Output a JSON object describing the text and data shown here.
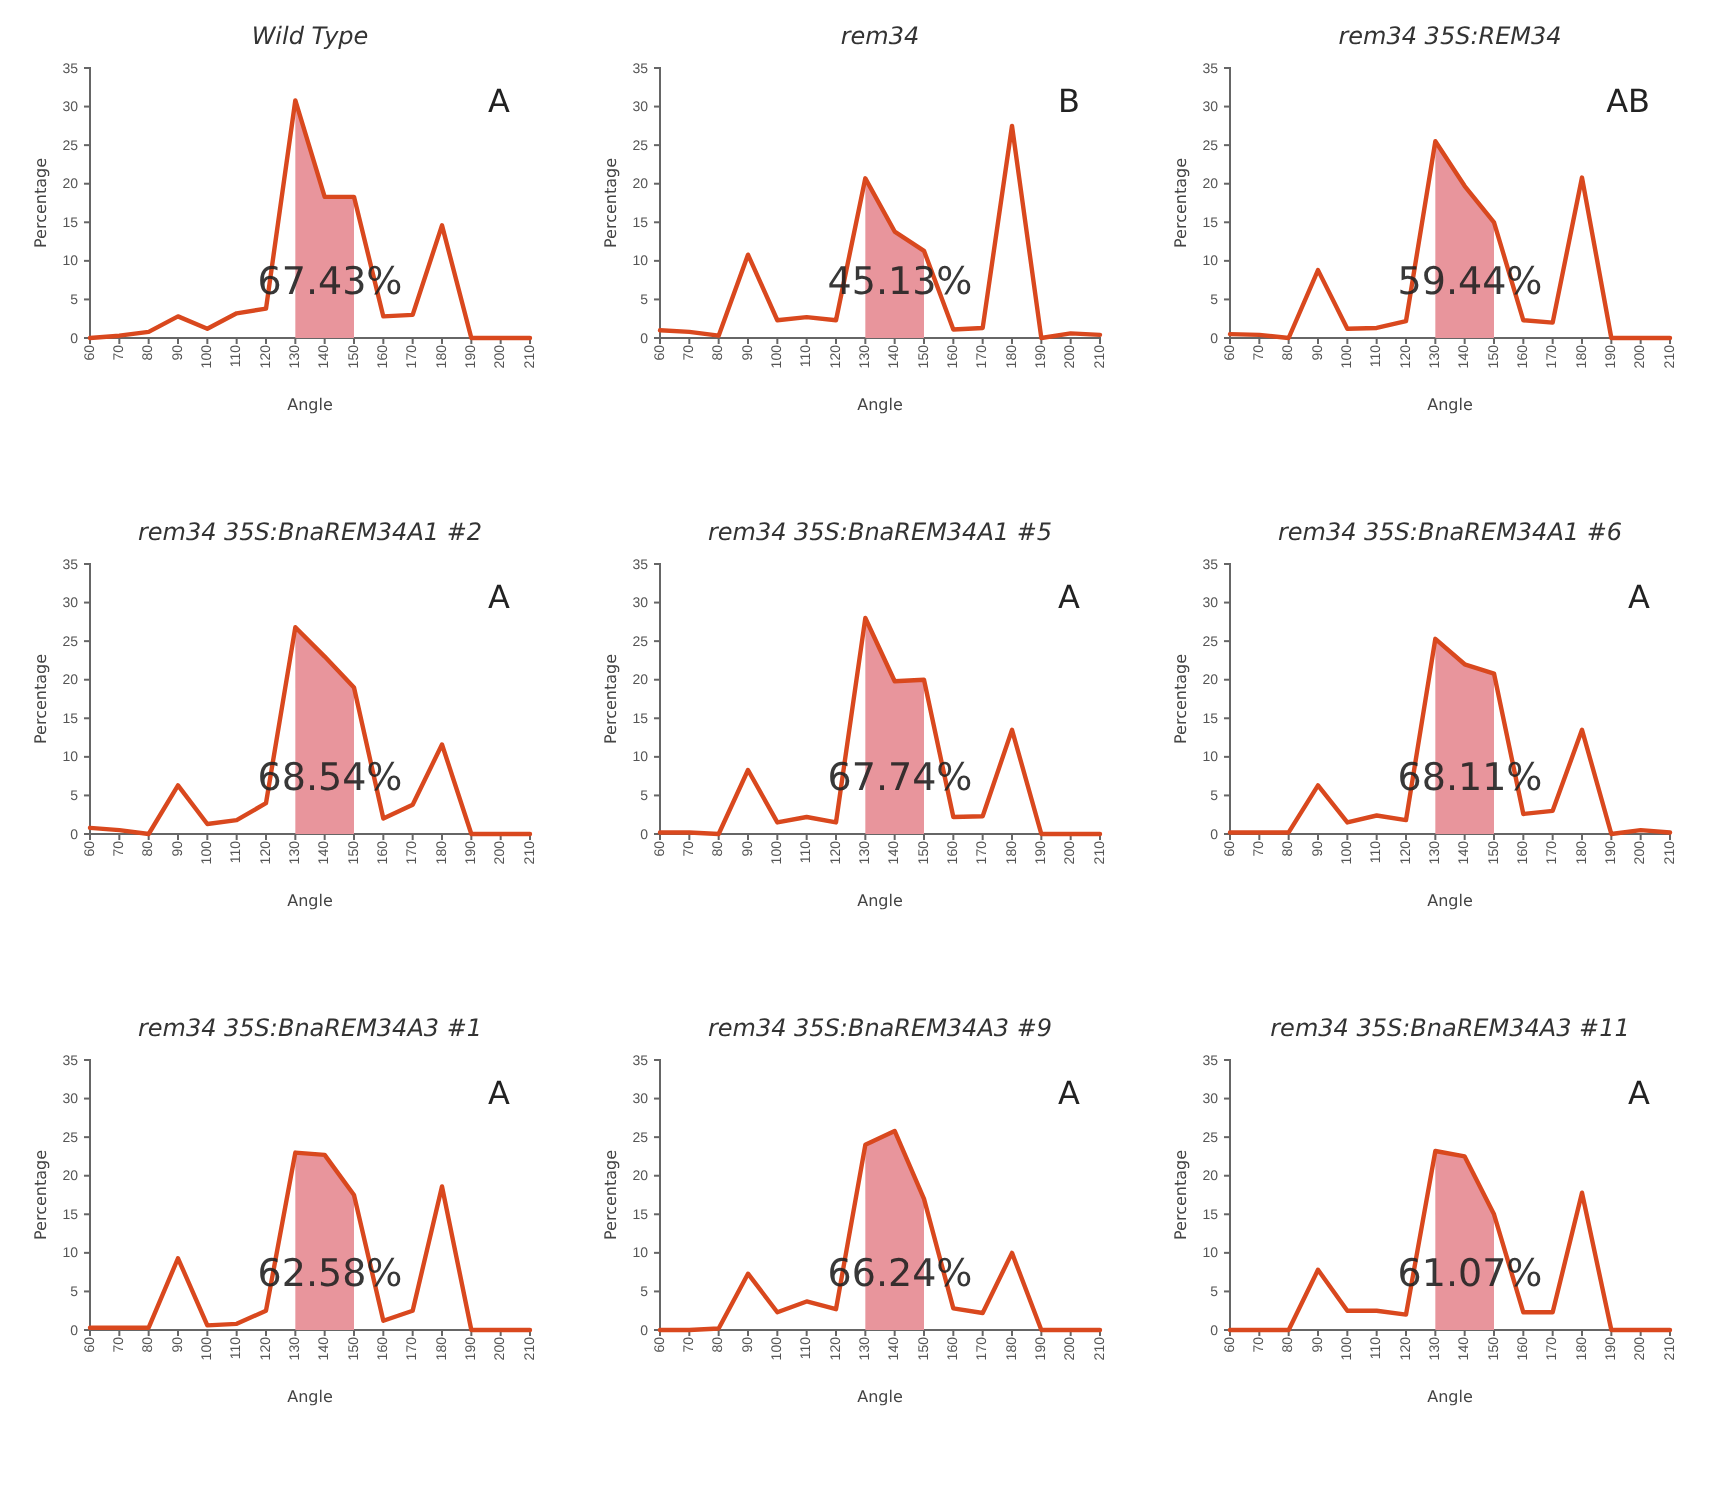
{
  "chart_data": [
    {
      "type": "line",
      "title": "Wild Type",
      "xlabel": "Angle",
      "ylabel": "Percentage",
      "xlim": [
        60,
        210
      ],
      "xticks": [
        60,
        70,
        80,
        90,
        100,
        110,
        120,
        130,
        140,
        150,
        160,
        170,
        180,
        190,
        200,
        210
      ],
      "ylim": [
        0,
        35
      ],
      "yticks": [
        0,
        5,
        10,
        15,
        20,
        25,
        30,
        35
      ],
      "x": [
        60,
        70,
        80,
        90,
        100,
        110,
        120,
        130,
        140,
        150,
        160,
        170,
        180,
        190,
        200,
        210
      ],
      "series": [
        {
          "type": "area",
          "color": "#e8959c",
          "x": [
            130,
            140,
            150
          ],
          "values": [
            30.8,
            18.3,
            18.3
          ]
        },
        {
          "color": "#d9481e",
          "values": [
            0,
            0.3,
            0.8,
            2.8,
            1.2,
            3.2,
            3.8,
            30.8,
            18.3,
            18.3,
            2.8,
            3,
            14.6,
            0,
            0,
            0
          ]
        }
      ],
      "annotations": [
        "67.43%",
        "A"
      ]
    },
    {
      "type": "line",
      "title": "rem34",
      "xlabel": "Angle",
      "ylabel": "Percentage",
      "xlim": [
        60,
        210
      ],
      "xticks": [
        60,
        70,
        80,
        90,
        100,
        110,
        120,
        130,
        140,
        150,
        160,
        170,
        180,
        190,
        200,
        210
      ],
      "ylim": [
        0,
        35
      ],
      "yticks": [
        0,
        5,
        10,
        15,
        20,
        25,
        30,
        35
      ],
      "x": [
        60,
        70,
        80,
        90,
        100,
        110,
        120,
        130,
        140,
        150,
        160,
        170,
        180,
        190,
        200,
        210
      ],
      "series": [
        {
          "type": "area",
          "color": "#e8959c",
          "x": [
            130,
            140,
            150
          ],
          "values": [
            20.7,
            13.8,
            11.3
          ]
        },
        {
          "color": "#d9481e",
          "values": [
            1,
            0.8,
            0.3,
            10.8,
            2.3,
            2.7,
            2.3,
            20.7,
            13.8,
            11.3,
            1.1,
            1.3,
            27.5,
            0,
            0.6,
            0.4
          ]
        }
      ],
      "annotations": [
        "45.13%",
        "B"
      ]
    },
    {
      "type": "line",
      "title": "rem34 35S:REM34",
      "xlabel": "Angle",
      "ylabel": "Percentage",
      "xlim": [
        60,
        210
      ],
      "xticks": [
        60,
        70,
        80,
        90,
        100,
        110,
        120,
        130,
        140,
        150,
        160,
        170,
        180,
        190,
        200,
        210
      ],
      "ylim": [
        0,
        35
      ],
      "yticks": [
        0,
        5,
        10,
        15,
        20,
        25,
        30,
        35
      ],
      "x": [
        60,
        70,
        80,
        90,
        100,
        110,
        120,
        130,
        140,
        150,
        160,
        170,
        180,
        190,
        200,
        210
      ],
      "series": [
        {
          "type": "area",
          "color": "#e8959c",
          "x": [
            130,
            140,
            150
          ],
          "values": [
            25.5,
            19.7,
            15
          ]
        },
        {
          "color": "#d9481e",
          "values": [
            0.5,
            0.4,
            0,
            8.8,
            1.2,
            1.3,
            2.2,
            25.5,
            19.7,
            15,
            2.3,
            2,
            20.8,
            0,
            0,
            0
          ]
        }
      ],
      "annotations": [
        "59.44%",
        "AB"
      ]
    },
    {
      "type": "line",
      "title": "rem34 35S:BnaREM34A1 #2",
      "xlabel": "Angle",
      "ylabel": "Percentage",
      "xlim": [
        60,
        210
      ],
      "xticks": [
        60,
        70,
        80,
        90,
        100,
        110,
        120,
        130,
        140,
        150,
        160,
        170,
        180,
        190,
        200,
        210
      ],
      "ylim": [
        0,
        35
      ],
      "yticks": [
        0,
        5,
        10,
        15,
        20,
        25,
        30,
        35
      ],
      "x": [
        60,
        70,
        80,
        90,
        100,
        110,
        120,
        130,
        140,
        150,
        160,
        170,
        180,
        190,
        200,
        210
      ],
      "series": [
        {
          "type": "area",
          "color": "#e8959c",
          "x": [
            130,
            140,
            150
          ],
          "values": [
            26.8,
            23,
            19
          ]
        },
        {
          "color": "#d9481e",
          "values": [
            0.8,
            0.5,
            0,
            6.3,
            1.3,
            1.8,
            4,
            26.8,
            23,
            19,
            2,
            3.8,
            11.6,
            0,
            0,
            0
          ]
        }
      ],
      "annotations": [
        "68.54%",
        "A"
      ]
    },
    {
      "type": "line",
      "title": "rem34 35S:BnaREM34A1 #5",
      "xlabel": "Angle",
      "ylabel": "Percentage",
      "xlim": [
        60,
        210
      ],
      "xticks": [
        60,
        70,
        80,
        90,
        100,
        110,
        120,
        130,
        140,
        150,
        160,
        170,
        180,
        190,
        200,
        210
      ],
      "ylim": [
        0,
        35
      ],
      "yticks": [
        0,
        5,
        10,
        15,
        20,
        25,
        30,
        35
      ],
      "x": [
        60,
        70,
        80,
        90,
        100,
        110,
        120,
        130,
        140,
        150,
        160,
        170,
        180,
        190,
        200,
        210
      ],
      "series": [
        {
          "type": "area",
          "color": "#e8959c",
          "x": [
            130,
            140,
            150
          ],
          "values": [
            28,
            19.8,
            20
          ]
        },
        {
          "color": "#d9481e",
          "values": [
            0.2,
            0.2,
            0,
            8.3,
            1.5,
            2.2,
            1.5,
            28,
            19.8,
            20,
            2.2,
            2.3,
            13.5,
            0,
            0,
            0
          ]
        }
      ],
      "annotations": [
        "67.74%",
        "A"
      ]
    },
    {
      "type": "line",
      "title": "rem34 35S:BnaREM34A1 #6",
      "xlabel": "Angle",
      "ylabel": "Percentage",
      "xlim": [
        60,
        210
      ],
      "xticks": [
        60,
        70,
        80,
        90,
        100,
        110,
        120,
        130,
        140,
        150,
        160,
        170,
        180,
        190,
        200,
        210
      ],
      "ylim": [
        0,
        35
      ],
      "yticks": [
        0,
        5,
        10,
        15,
        20,
        25,
        30,
        35
      ],
      "x": [
        60,
        70,
        80,
        90,
        100,
        110,
        120,
        130,
        140,
        150,
        160,
        170,
        180,
        190,
        200,
        210
      ],
      "series": [
        {
          "type": "area",
          "color": "#e8959c",
          "x": [
            130,
            140,
            150
          ],
          "values": [
            25.3,
            22,
            20.8
          ]
        },
        {
          "color": "#d9481e",
          "values": [
            0.2,
            0.2,
            0.2,
            6.3,
            1.5,
            2.4,
            1.8,
            25.3,
            22,
            20.8,
            2.6,
            3,
            13.5,
            0,
            0.5,
            0.2
          ]
        }
      ],
      "annotations": [
        "68.11%",
        "A"
      ]
    },
    {
      "type": "line",
      "title": "rem34 35S:BnaREM34A3 #1",
      "xlabel": "Angle",
      "ylabel": "Percentage",
      "xlim": [
        60,
        210
      ],
      "xticks": [
        60,
        70,
        80,
        90,
        100,
        110,
        120,
        130,
        140,
        150,
        160,
        170,
        180,
        190,
        200,
        210
      ],
      "ylim": [
        0,
        35
      ],
      "yticks": [
        0,
        5,
        10,
        15,
        20,
        25,
        30,
        35
      ],
      "x": [
        60,
        70,
        80,
        90,
        100,
        110,
        120,
        130,
        140,
        150,
        160,
        170,
        180,
        190,
        200,
        210
      ],
      "series": [
        {
          "type": "area",
          "color": "#e8959c",
          "x": [
            130,
            140,
            150
          ],
          "values": [
            23,
            22.7,
            17.5
          ]
        },
        {
          "color": "#d9481e",
          "values": [
            0.3,
            0.3,
            0.3,
            9.3,
            0.6,
            0.8,
            2.5,
            23,
            22.7,
            17.5,
            1.2,
            2.5,
            18.6,
            0,
            0,
            0
          ]
        }
      ],
      "annotations": [
        "62.58%",
        "A"
      ]
    },
    {
      "type": "line",
      "title": "rem34 35S:BnaREM34A3 #9",
      "xlabel": "Angle",
      "ylabel": "Percentage",
      "xlim": [
        60,
        210
      ],
      "xticks": [
        60,
        70,
        80,
        90,
        100,
        110,
        120,
        130,
        140,
        150,
        160,
        170,
        180,
        190,
        200,
        210
      ],
      "ylim": [
        0,
        35
      ],
      "yticks": [
        0,
        5,
        10,
        15,
        20,
        25,
        30,
        35
      ],
      "x": [
        60,
        70,
        80,
        90,
        100,
        110,
        120,
        130,
        140,
        150,
        160,
        170,
        180,
        190,
        200,
        210
      ],
      "series": [
        {
          "type": "area",
          "color": "#e8959c",
          "x": [
            130,
            140,
            150
          ],
          "values": [
            24,
            25.8,
            17
          ]
        },
        {
          "color": "#d9481e",
          "values": [
            0,
            0,
            0.2,
            7.3,
            2.3,
            3.7,
            2.7,
            24,
            25.8,
            17,
            2.8,
            2.2,
            10,
            0,
            0,
            0
          ]
        }
      ],
      "annotations": [
        "66.24%",
        "A"
      ]
    },
    {
      "type": "line",
      "title": "rem34 35S:BnaREM34A3 #11",
      "xlabel": "Angle",
      "ylabel": "Percentage",
      "xlim": [
        60,
        210
      ],
      "xticks": [
        60,
        70,
        80,
        90,
        100,
        110,
        120,
        130,
        140,
        150,
        160,
        170,
        180,
        190,
        200,
        210
      ],
      "ylim": [
        0,
        35
      ],
      "yticks": [
        0,
        5,
        10,
        15,
        20,
        25,
        30,
        35
      ],
      "x": [
        60,
        70,
        80,
        90,
        100,
        110,
        120,
        130,
        140,
        150,
        160,
        170,
        180,
        190,
        200,
        210
      ],
      "series": [
        {
          "type": "area",
          "color": "#e8959c",
          "x": [
            130,
            140,
            150
          ],
          "values": [
            23.2,
            22.5,
            15
          ]
        },
        {
          "color": "#d9481e",
          "values": [
            0,
            0,
            0,
            7.8,
            2.5,
            2.5,
            2,
            23.2,
            22.5,
            15,
            2.3,
            2.3,
            17.8,
            0,
            0,
            0
          ]
        }
      ],
      "annotations": [
        "61.07%",
        "A"
      ]
    }
  ]
}
